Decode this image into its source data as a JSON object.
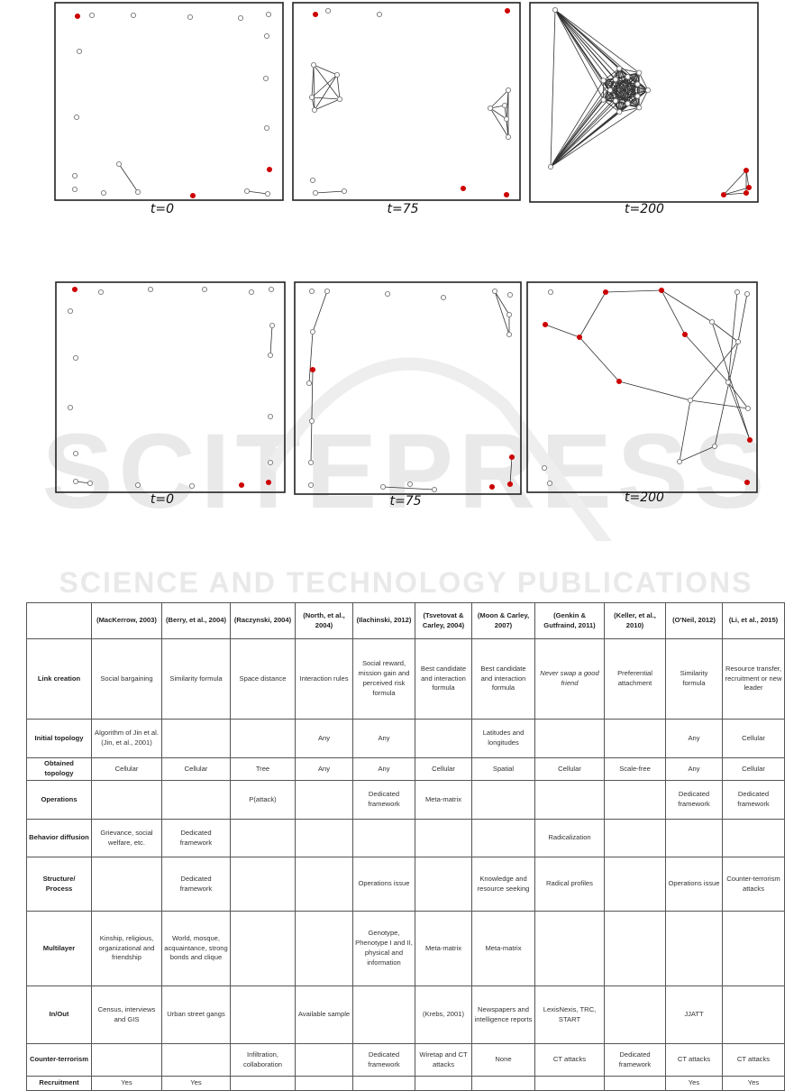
{
  "figure_top": {
    "captions": [
      "t=0",
      "t=75",
      "t=200"
    ]
  },
  "figure_bottom": {
    "captions": [
      "t=0",
      "t=75",
      "t=200"
    ]
  },
  "colors": {
    "highlight_node": "#cc0000",
    "node_outline": "#777777",
    "edge": "#333333"
  },
  "watermark": {
    "main": "SCITEPRESS",
    "sub": "SCIENCE AND TECHNOLOGY PUBLICATIONS"
  },
  "table": {
    "headers": [
      "",
      "(MacKerrow, 2003)",
      "(Berry, et al., 2004)",
      "(Raczynski, 2004)",
      "(North, et al., 2004)",
      "(Ilachinski, 2012)",
      "(Tsvetovat & Carley, 2004)",
      "(Moon & Carley, 2007)",
      "(Genkin & Gutfraind, 2011)",
      "(Keller, et al., 2010)",
      "(O'Neil, 2012)",
      "(Li, et al., 2015)"
    ],
    "rows": [
      {
        "label": "Link creation",
        "cells": [
          "Social bargaining",
          "Similarity formula",
          "Space distance",
          "Interaction rules",
          "Social reward, mission gain and perceived risk formula",
          "Best candidate and interaction formula",
          "Best candidate and interaction formula",
          "Never swap a good friend",
          "Preferential attachment",
          "Similarity formula",
          "Resource transfer, recruitment or new leader"
        ]
      },
      {
        "label": "Initial topology",
        "cells": [
          "Algorithm of Jin et al. (Jin, et al., 2001)",
          "",
          "",
          "Any",
          "Any",
          "",
          "Latitudes and longitudes",
          "",
          "",
          "Any",
          "Cellular"
        ]
      },
      {
        "label": "Obtained topology",
        "cells": [
          "Cellular",
          "Cellular",
          "Tree",
          "Any",
          "Any",
          "Cellular",
          "Spatial",
          "Cellular",
          "Scale-free",
          "Any",
          "Cellular"
        ]
      },
      {
        "label": "Operations",
        "cells": [
          "",
          "",
          "P(attack)",
          "",
          "Dedicated framework",
          "Meta-matrix",
          "",
          "",
          "",
          "Dedicated framework",
          "Dedicated framework"
        ]
      },
      {
        "label": "Behavior diffusion",
        "cells": [
          "Grievance, social welfare, etc.",
          "Dedicated framework",
          "",
          "",
          "",
          "",
          "",
          "Radicalization",
          "",
          "",
          ""
        ]
      },
      {
        "label": "Structure/ Process",
        "cells": [
          "",
          "Dedicated framework",
          "",
          "",
          "Operations issue",
          "",
          "Knowledge and resource seeking",
          "Radical profiles",
          "",
          "Operations issue",
          "Counter-terrorism attacks"
        ]
      },
      {
        "label": "Multilayer",
        "cells": [
          "Kinship, religious, organizational and friendship",
          "World, mosque, acquaintance, strong bonds and clique",
          "",
          "",
          "Genotype, Phenotype I and II, physical and information",
          "Meta-matrix",
          "Meta-matrix",
          "",
          "",
          "",
          ""
        ]
      },
      {
        "label": "In/Out",
        "cells": [
          "Census, interviews and GIS",
          "Urban street gangs",
          "",
          "Available sample",
          "",
          "(Krebs, 2001)",
          "Newspapers and intelligence reports",
          "LexisNexis, TRC, START",
          "",
          "JJATT",
          ""
        ]
      },
      {
        "label": "Counter-terrorism",
        "cells": [
          "",
          "",
          "Infiltration, collaboration",
          "",
          "Dedicated framework",
          "Wiretap and CT attacks",
          "None",
          "CT attacks",
          "Dedicated framework",
          "CT attacks",
          "CT attacks"
        ]
      },
      {
        "label": "Recruitment",
        "cells": [
          "Yes",
          "Yes",
          "",
          "",
          "",
          "",
          "",
          "",
          "",
          "Yes",
          "Yes"
        ]
      }
    ]
  }
}
